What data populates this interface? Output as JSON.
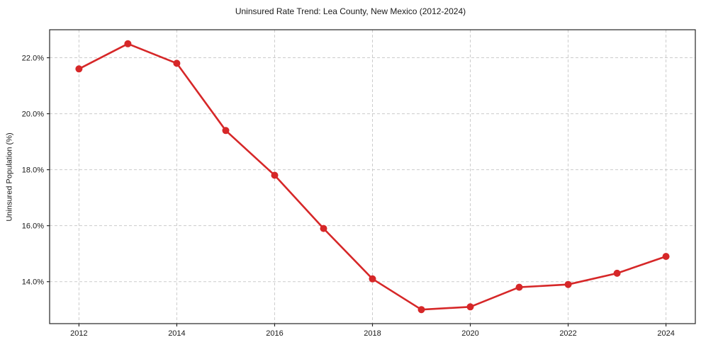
{
  "chart_data": {
    "type": "line",
    "title": "Uninsured Rate Trend: Lea County, New Mexico (2012-2024)",
    "xlabel": "",
    "ylabel": "Uninsured Population (%)",
    "x": [
      2012,
      2013,
      2014,
      2015,
      2016,
      2017,
      2018,
      2019,
      2020,
      2021,
      2022,
      2023,
      2024
    ],
    "values": [
      21.6,
      22.5,
      21.8,
      19.4,
      17.8,
      15.9,
      14.1,
      13.0,
      13.1,
      13.8,
      13.9,
      14.3,
      14.9
    ],
    "xlim": [
      2011.4,
      2024.6
    ],
    "ylim": [
      12.5,
      23.0
    ],
    "xticks": [
      2012,
      2014,
      2016,
      2018,
      2020,
      2022,
      2024
    ],
    "xtick_labels": [
      "2012",
      "2014",
      "2016",
      "2018",
      "2020",
      "2022",
      "2024"
    ],
    "yticks": [
      14,
      16,
      18,
      20,
      22
    ],
    "ytick_labels": [
      "14.0%",
      "16.0%",
      "18.0%",
      "20.0%",
      "22.0%"
    ],
    "grid": true,
    "grid_style": "dashed",
    "legend_position": "none",
    "line_color": "#d62728",
    "marker": "circle",
    "marker_color": "#d62728"
  },
  "colors": {
    "background": "#ffffff",
    "grid": "#cccccc",
    "spine": "#262626",
    "text": "#1a1a1a"
  }
}
